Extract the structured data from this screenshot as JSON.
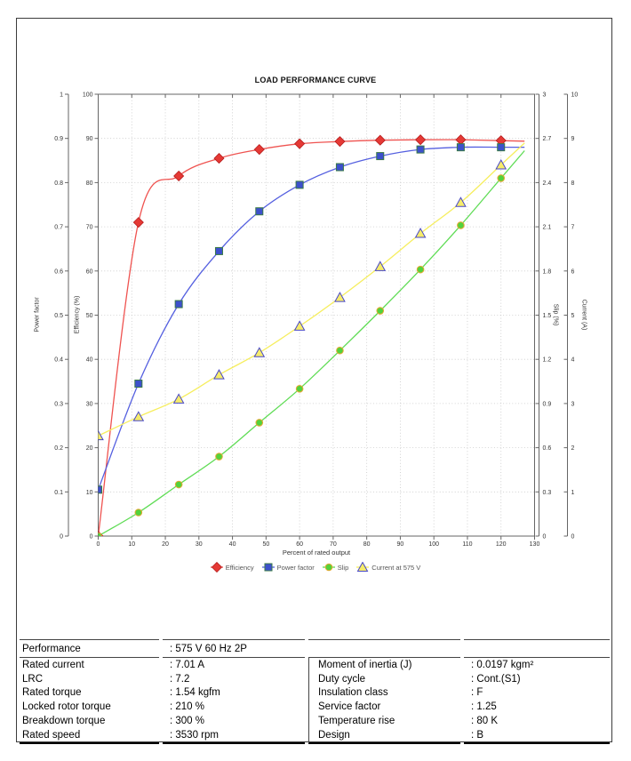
{
  "chart_data": {
    "type": "line",
    "title": "LOAD PERFORMANCE CURVE",
    "xlabel": "Percent of rated output",
    "x_axis": {
      "min": 0,
      "max": 130,
      "step": 10
    },
    "y_axes": [
      {
        "id": "power_factor",
        "label": "Power factor",
        "min": 0,
        "max": 1,
        "step": 0.1
      },
      {
        "id": "efficiency",
        "label": "Efficiency (%)",
        "min": 0,
        "max": 100,
        "step": 10
      },
      {
        "id": "slip",
        "label": "Slip (%)",
        "min": 0,
        "max": 3,
        "step": 0.3
      },
      {
        "id": "current",
        "label": "Current (A)",
        "min": 0,
        "max": 10,
        "step": 1
      }
    ],
    "x": [
      0,
      12,
      24,
      36,
      48,
      60,
      72,
      84,
      96,
      108,
      120
    ],
    "series": [
      {
        "name": "Efficiency",
        "axis": "efficiency",
        "marker": "diamond",
        "line_color": "#ef5350",
        "marker_fill": "#e53935",
        "marker_stroke": "#b71c1c",
        "values": [
          0,
          71,
          81.5,
          85.5,
          87.5,
          88.8,
          89.3,
          89.6,
          89.7,
          89.7,
          89.5
        ]
      },
      {
        "name": "Power factor",
        "axis": "power_factor",
        "marker": "square",
        "line_color": "#5560e0",
        "marker_fill": "#3d50cc",
        "marker_stroke": "#3a7a46",
        "values": [
          0.105,
          0.345,
          0.525,
          0.645,
          0.735,
          0.795,
          0.835,
          0.86,
          0.875,
          0.88,
          0.88
        ]
      },
      {
        "name": "Slip",
        "axis": "slip",
        "marker": "circle",
        "line_color": "#5fdc55",
        "marker_fill": "#52d23c",
        "marker_stroke": "#e8a832",
        "values": [
          0,
          0.16,
          0.35,
          0.54,
          0.77,
          1.0,
          1.26,
          1.53,
          1.81,
          2.11,
          2.43
        ]
      },
      {
        "name": "Current at 575 V",
        "axis": "current",
        "marker": "triangle",
        "line_color": "#f6ee5e",
        "marker_fill": "#f6ec6a",
        "marker_stroke": "#4848c8",
        "values": [
          2.27,
          2.7,
          3.1,
          3.65,
          4.15,
          4.75,
          5.4,
          6.1,
          6.85,
          7.55,
          8.4
        ]
      }
    ],
    "legend_position": "bottom",
    "grid": true,
    "grid_color": "#c8c8c8",
    "axis_color": "#666666",
    "tick_text_color": "#333333"
  },
  "spec_table": {
    "performance_label": "Performance",
    "performance_value": ": 575 V 60 Hz 2P",
    "rows": [
      {
        "label_left": "Rated current",
        "value_left": ": 7.01 A",
        "label_right": "Moment of inertia (J)",
        "value_right": ": 0.0197 kgm²"
      },
      {
        "label_left": "LRC",
        "value_left": ": 7.2",
        "label_right": "Duty cycle",
        "value_right": ": Cont.(S1)"
      },
      {
        "label_left": "Rated torque",
        "value_left": ": 1.54 kgfm",
        "label_right": "Insulation class",
        "value_right": ": F"
      },
      {
        "label_left": "Locked rotor torque",
        "value_left": ": 210 %",
        "label_right": "Service factor",
        "value_right": ": 1.25"
      },
      {
        "label_left": "Breakdown torque",
        "value_left": ": 300 %",
        "label_right": "Temperature rise",
        "value_right": ": 80 K"
      },
      {
        "label_left": "Rated speed",
        "value_left": ": 3530 rpm",
        "label_right": "Design",
        "value_right": ": B"
      }
    ]
  }
}
